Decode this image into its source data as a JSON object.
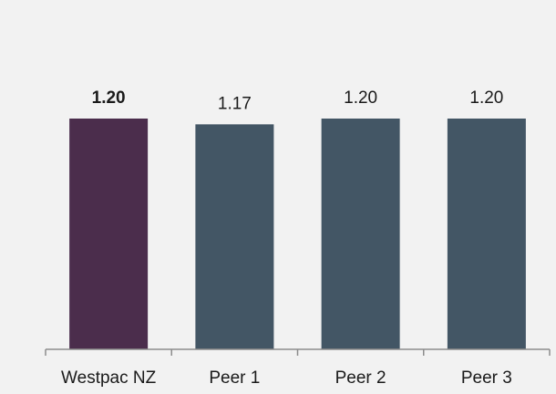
{
  "chart_data": {
    "type": "bar",
    "title": "",
    "xlabel": "",
    "ylabel": "",
    "categories": [
      "Westpac NZ",
      "Peer 1",
      "Peer 2",
      "Peer 3"
    ],
    "values": [
      1.2,
      1.17,
      1.2,
      1.2
    ],
    "value_labels": [
      "1.20",
      "1.17",
      "1.20",
      "1.20"
    ],
    "highlight_index": 0,
    "ylim": [
      0,
      1.2
    ],
    "grid": false,
    "legend": false,
    "colors": {
      "highlight": "#4b2d4c",
      "peer": "#435665",
      "axis": "#8c8c8c",
      "background": "#ffffff",
      "panel": "#f2f2f2",
      "text": "#1a1a1a"
    }
  }
}
